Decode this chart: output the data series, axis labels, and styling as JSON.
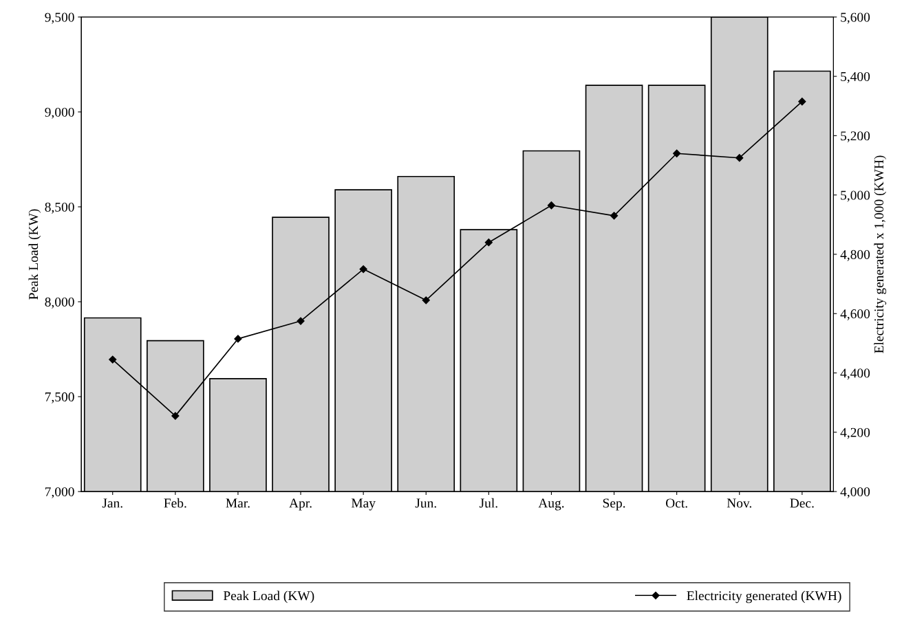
{
  "chart_data": {
    "type": "bar",
    "categories": [
      "Jan.",
      "Feb.",
      "Mar.",
      "Apr.",
      "May",
      "Jun.",
      "Jul.",
      "Aug.",
      "Sep.",
      "Oct.",
      "Nov.",
      "Dec."
    ],
    "ylabel": "Peak Load (KW)",
    "y2label": "Electricity generated x 1,000 (KWH)",
    "ylim": [
      7000,
      9500
    ],
    "yticks": [
      {
        "value": 7000,
        "label": "7,000"
      },
      {
        "value": 7500,
        "label": "7,500"
      },
      {
        "value": 8000,
        "label": "8,000"
      },
      {
        "value": 8500,
        "label": "8,500"
      },
      {
        "value": 9000,
        "label": "9,000"
      },
      {
        "value": 9500,
        "label": "9,500"
      }
    ],
    "y2lim": [
      4000,
      5600
    ],
    "y2ticks": [
      {
        "value": 4000,
        "label": "4,000"
      },
      {
        "value": 4200,
        "label": "4,200"
      },
      {
        "value": 4400,
        "label": "4,400"
      },
      {
        "value": 4600,
        "label": "4,600"
      },
      {
        "value": 4800,
        "label": "4,800"
      },
      {
        "value": 5000,
        "label": "5,000"
      },
      {
        "value": 5200,
        "label": "5,200"
      },
      {
        "value": 5400,
        "label": "5,400"
      },
      {
        "value": 5600,
        "label": "5,600"
      }
    ],
    "series": [
      {
        "name": "Peak Load (KW)",
        "color": "#cfcfcf",
        "values": [
          7915,
          7795,
          7595,
          8445,
          8590,
          8660,
          8380,
          8795,
          9140,
          9140,
          9500,
          9215
        ]
      },
      {
        "name": "Electricity generated (KWH)",
        "type": "line",
        "axis": "y2",
        "color": "#000000",
        "marker": "diamond",
        "values": [
          4445,
          4255,
          4515,
          4575,
          4750,
          4645,
          4840,
          4965,
          4930,
          5140,
          5125,
          5315
        ]
      }
    ],
    "grid": false,
    "legend": "bottom"
  }
}
